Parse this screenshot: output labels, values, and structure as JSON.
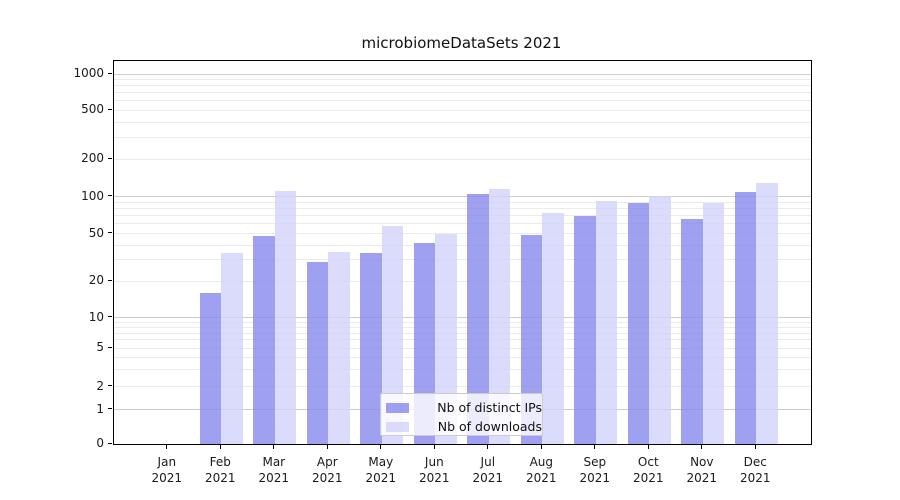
{
  "chart_data": {
    "type": "bar",
    "title": "microbiomeDataSets 2021",
    "categories": [
      "Jan 2021",
      "Feb 2021",
      "Mar 2021",
      "Apr 2021",
      "May 2021",
      "Jun 2021",
      "Jul 2021",
      "Aug 2021",
      "Sep 2021",
      "Oct 2021",
      "Nov 2021",
      "Dec 2021"
    ],
    "series": [
      {
        "name": "Nb of distinct IPs",
        "color": "rgba(136,136,238,0.8)",
        "values": [
          0,
          16,
          48,
          29,
          34,
          42,
          106,
          49,
          70,
          88,
          66,
          109
        ]
      },
      {
        "name": "Nb of downloads",
        "color": "rgba(210,210,250,0.8)",
        "values": [
          0,
          34,
          111,
          35,
          58,
          50,
          115,
          73,
          93,
          102,
          89,
          130
        ]
      }
    ],
    "yticks": [
      0,
      1,
      2,
      5,
      10,
      20,
      50,
      100,
      200,
      500,
      1000
    ],
    "ylim": [
      0,
      1300
    ],
    "yscale": "symlog",
    "xlabel": "",
    "ylabel": "",
    "grid": {
      "major": true,
      "minor": true
    },
    "legend_position": "lower center"
  },
  "colors": {
    "major_grid": "#cdcdcd",
    "minor_grid": "#ebebeb",
    "spine": "#000000",
    "text": "#1a1a1a",
    "legend_border": "#cccccc",
    "legend_bg": "rgba(255,255,255,0.8)"
  }
}
